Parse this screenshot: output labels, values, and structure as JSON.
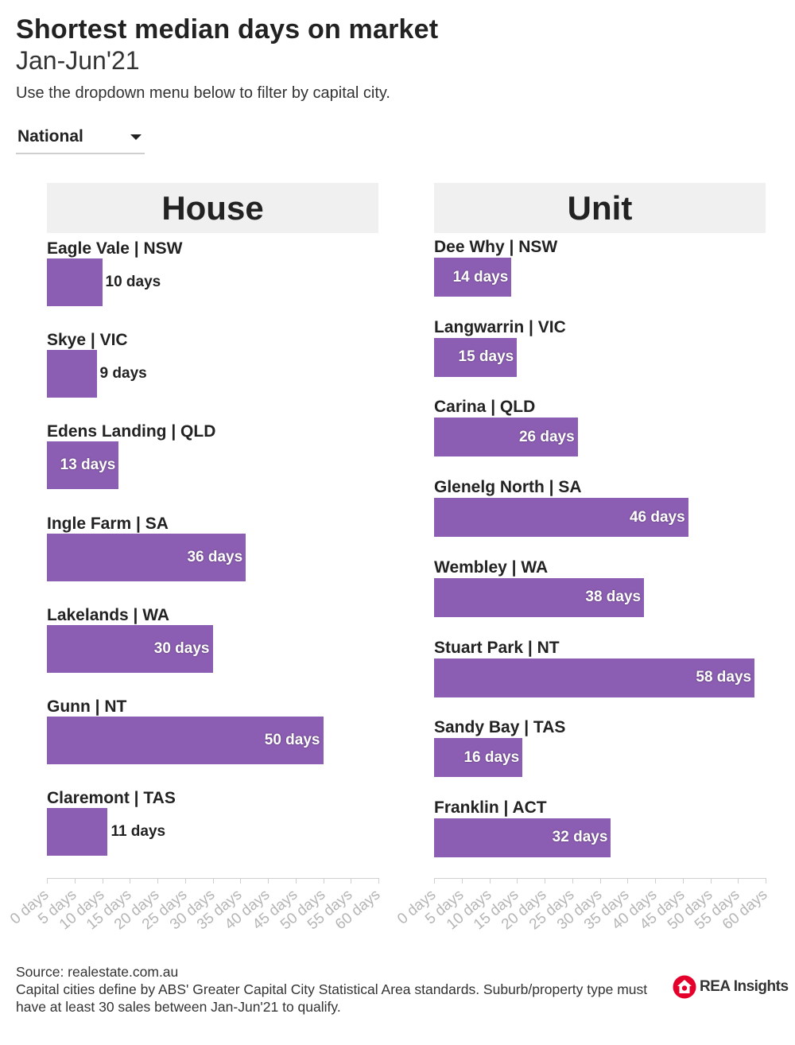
{
  "header": {
    "title": "Shortest median days on market",
    "subtitle": "Jan-Jun'21",
    "instructions": "Use the dropdown menu below to filter by capital city."
  },
  "filter": {
    "selected": "National"
  },
  "footer": {
    "source": "Source: realestate.com.au",
    "note": "Capital cities define by ABS' Greater Capital City Statistical Area standards. Suburb/property type must have at least 30 sales between Jan-Jun'21 to qualify."
  },
  "logo": {
    "text": "REA Insights",
    "brand_color": "#e4002b"
  },
  "colors": {
    "bar": "#8c5eb3",
    "header_bg": "#f0f0f0"
  },
  "chart_data": [
    {
      "type": "bar",
      "orientation": "horizontal",
      "title": "House",
      "categories": [
        "Eagle Vale | NSW",
        "Skye | VIC",
        "Edens Landing | QLD",
        "Ingle Farm | SA",
        "Lakelands | WA",
        "Gunn | NT",
        "Claremont | TAS"
      ],
      "values": [
        10,
        9,
        13,
        36,
        30,
        50,
        11
      ],
      "data_labels": [
        "10 days",
        "9 days",
        "13 days",
        "36 days",
        "30 days",
        "50 days",
        "11 days"
      ],
      "xlim": [
        0,
        60
      ],
      "xticks": [
        "0 days",
        "5 days",
        "10 days",
        "15 days",
        "20 days",
        "25 days",
        "30 days",
        "35 days",
        "40 days",
        "45 days",
        "50 days",
        "55 days",
        "60 days"
      ],
      "grid": false
    },
    {
      "type": "bar",
      "orientation": "horizontal",
      "title": "Unit",
      "categories": [
        "Dee Why | NSW",
        "Langwarrin | VIC",
        "Carina | QLD",
        "Glenelg North | SA",
        "Wembley | WA",
        "Stuart Park | NT",
        "Sandy Bay | TAS",
        "Franklin | ACT"
      ],
      "values": [
        14,
        15,
        26,
        46,
        38,
        58,
        16,
        32
      ],
      "data_labels": [
        "14 days",
        "15 days",
        "26 days",
        "46 days",
        "38 days",
        "58 days",
        "16 days",
        "32 days"
      ],
      "xlim": [
        0,
        60
      ],
      "xticks": [
        "0 days",
        "5 days",
        "10 days",
        "15 days",
        "20 days",
        "25 days",
        "30 days",
        "35 days",
        "40 days",
        "45 days",
        "50 days",
        "55 days",
        "60 days"
      ],
      "grid": false
    }
  ]
}
